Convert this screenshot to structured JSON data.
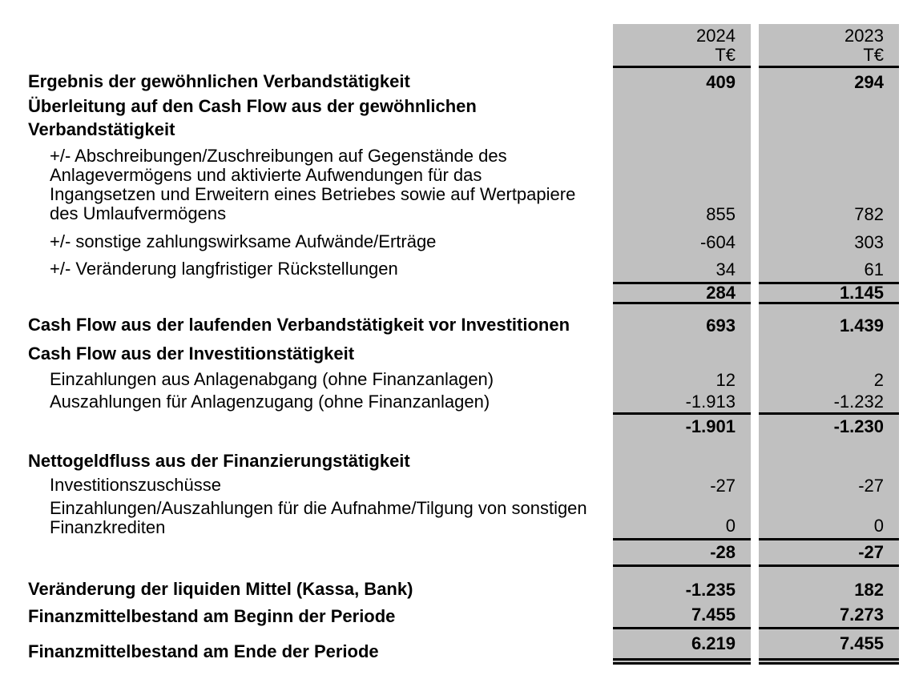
{
  "document_type": "Geldflussrechnung (cash flow statement)",
  "colors": {
    "column_background": "#c0c0c0",
    "text": "#000000",
    "rule": "#000000"
  },
  "header": {
    "col1": {
      "year": "2024",
      "unit": "T€"
    },
    "col2": {
      "year": "2023",
      "unit": "T€"
    }
  },
  "rows": [
    {
      "label": "Ergebnis der gewöhnlichen Verbandstätigkeit",
      "v1": "409",
      "v2": "294"
    },
    {
      "label": "Überleitung auf den Cash Flow aus der gewöhnlichen\nVerbandstätigkeit",
      "v1": "",
      "v2": ""
    },
    {
      "label": "+/- Abschreibungen/Zuschreibungen auf Gegenstände des\nAnlagevermögens und aktivierte Aufwendungen für das\nIngangsetzen und Erweitern eines Betriebes sowie auf Wertpapiere\ndes Umlaufvermögens",
      "v1": "855",
      "v2": "782"
    },
    {
      "label": "+/- sonstige zahlungswirksame Aufwände/Erträge",
      "v1": "-604",
      "v2": "303"
    },
    {
      "label": "+/- Veränderung langfristiger Rückstellungen",
      "v1": "34",
      "v2": "61"
    },
    {
      "label": "",
      "v1": "284",
      "v2": "1.145"
    },
    {
      "label": "Cash Flow aus der laufenden Verbandstätigkeit vor Investitionen",
      "v1": "693",
      "v2": "1.439"
    },
    {
      "label": "Cash Flow aus der Investitionstätigkeit",
      "v1": "",
      "v2": ""
    },
    {
      "label": "Einzahlungen aus Anlagenabgang (ohne Finanzanlagen)",
      "v1": "12",
      "v2": "2"
    },
    {
      "label": "Auszahlungen für Anlagenzugang (ohne Finanzanlagen)",
      "v1": "-1.913",
      "v2": "-1.232"
    },
    {
      "label": "",
      "v1": "-1.901",
      "v2": "-1.230"
    },
    {
      "label": "Nettogeldfluss aus der Finanzierungstätigkeit",
      "v1": "",
      "v2": ""
    },
    {
      "label": "Investitionszuschüsse",
      "v1": "-27",
      "v2": "-27"
    },
    {
      "label": "Einzahlungen/Auszahlungen für die Aufnahme/Tilgung von sonstigen\nFinanzkrediten",
      "v1": "0",
      "v2": "0"
    },
    {
      "label": "",
      "v1": "-28",
      "v2": "-27"
    },
    {
      "label": "Veränderung der liquiden Mittel (Kassa, Bank)",
      "v1": "-1.235",
      "v2": "182"
    },
    {
      "label": "Finanzmittelbestand am Beginn der Periode",
      "v1": "7.455",
      "v2": "7.273"
    },
    {
      "label": "Finanzmittelbestand am Ende der Periode",
      "v1": "6.219",
      "v2": "7.455"
    }
  ]
}
